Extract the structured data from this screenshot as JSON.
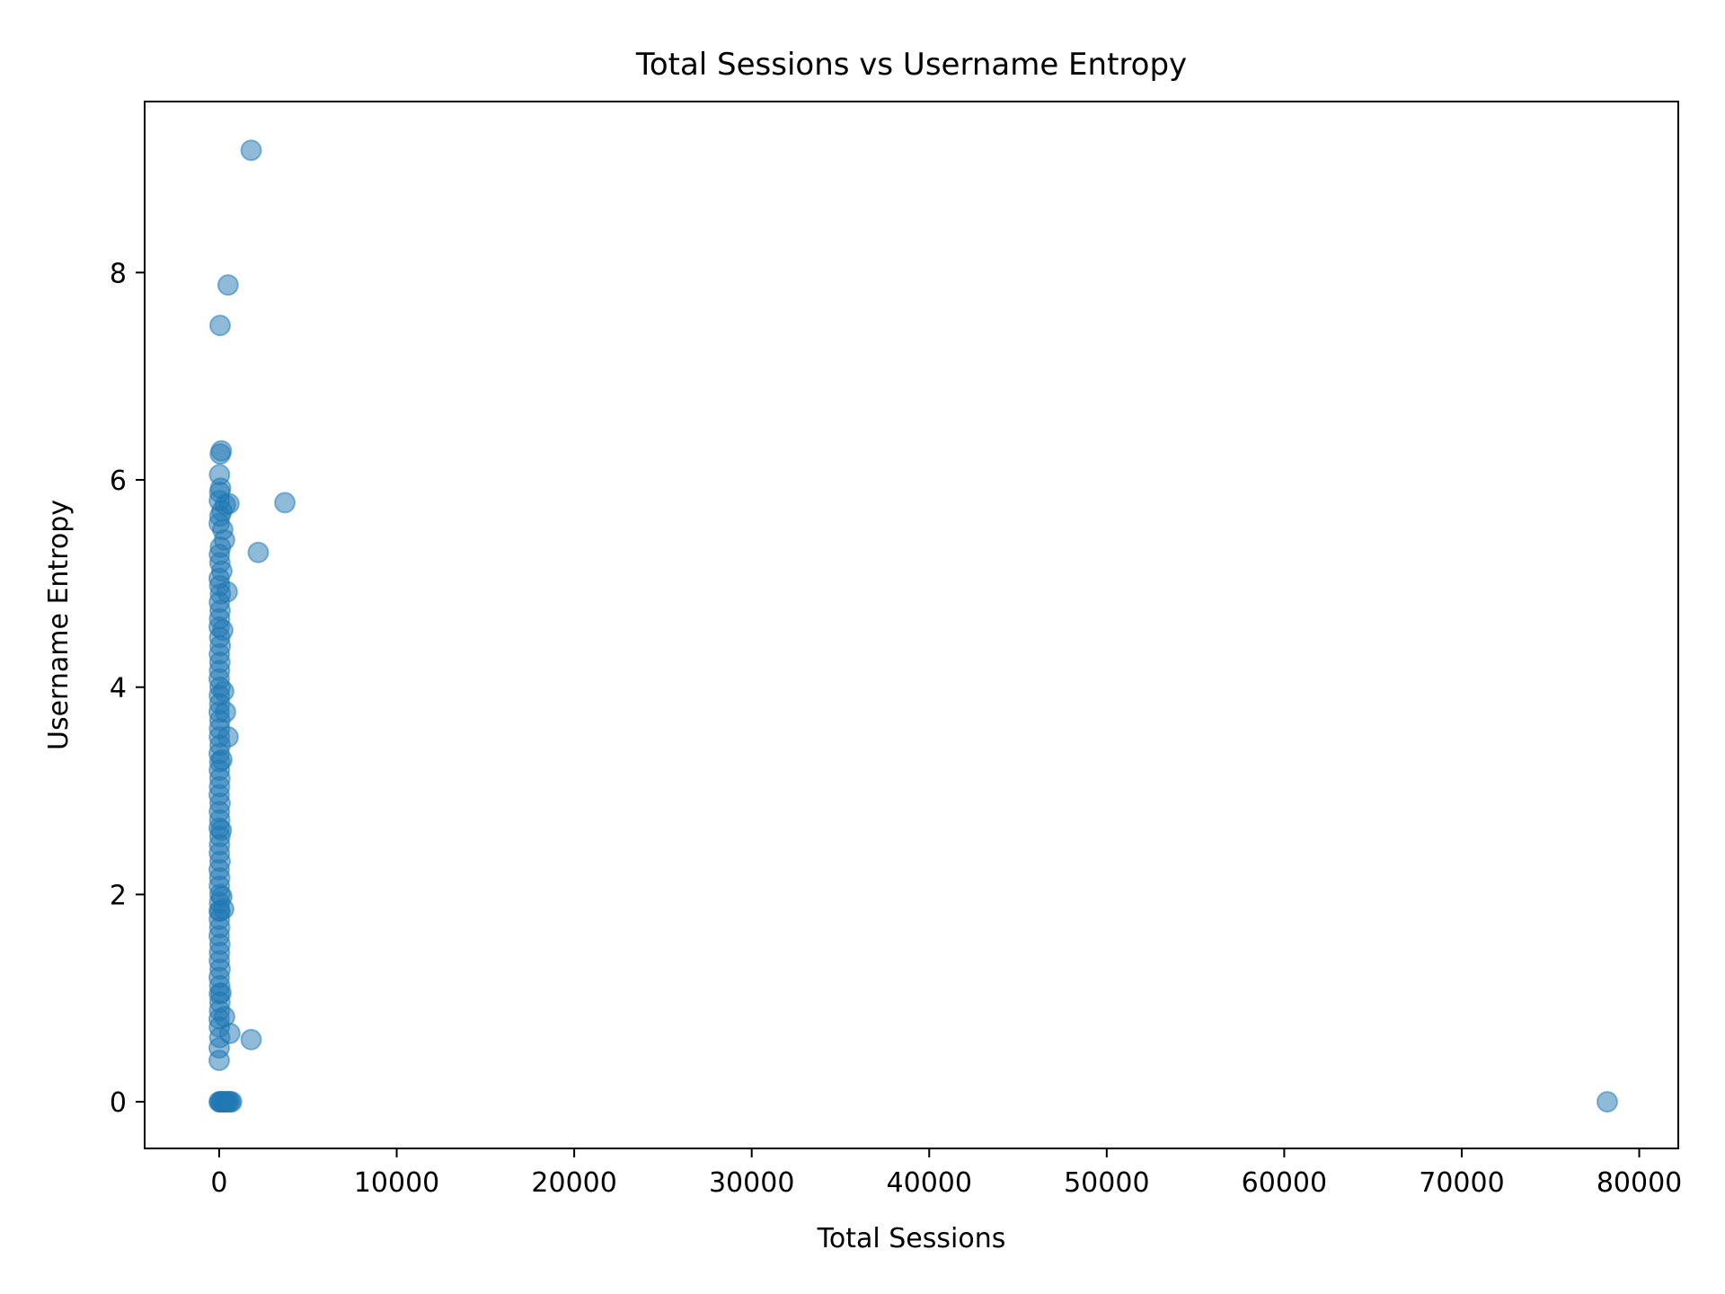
{
  "chart_data": {
    "type": "scatter",
    "title": "Total Sessions vs Username Entropy",
    "xlabel": "Total Sessions",
    "ylabel": "Username Entropy",
    "xlim": [
      -4200,
      82200
    ],
    "ylim": [
      -0.45,
      9.65
    ],
    "xticks": [
      0,
      10000,
      20000,
      30000,
      40000,
      50000,
      60000,
      70000,
      80000
    ],
    "xtick_labels": [
      "0",
      "10000",
      "20000",
      "30000",
      "40000",
      "50000",
      "60000",
      "70000",
      "80000"
    ],
    "yticks": [
      0,
      2,
      4,
      6,
      8
    ],
    "ytick_labels": [
      "0",
      "2",
      "4",
      "6",
      "8"
    ],
    "grid": false,
    "legend": "none",
    "marker_color": "#1f77b4",
    "marker_alpha": 0.5,
    "series": [
      {
        "points": [
          [
            1800,
            9.18
          ],
          [
            500,
            7.88
          ],
          [
            50,
            7.49
          ],
          [
            3700,
            5.78
          ],
          [
            2200,
            5.3
          ],
          [
            1800,
            0.6
          ],
          [
            78200,
            0.0
          ],
          [
            120,
            6.28
          ],
          [
            60,
            6.25
          ],
          [
            20,
            6.05
          ],
          [
            80,
            5.92
          ],
          [
            30,
            5.88
          ],
          [
            10,
            5.8
          ],
          [
            550,
            5.77
          ],
          [
            350,
            5.76
          ],
          [
            150,
            5.7
          ],
          [
            40,
            5.65
          ],
          [
            0,
            5.58
          ],
          [
            200,
            5.52
          ],
          [
            300,
            5.42
          ],
          [
            70,
            5.35
          ],
          [
            10,
            5.28
          ],
          [
            40,
            5.2
          ],
          [
            150,
            5.12
          ],
          [
            0,
            5.05
          ],
          [
            30,
            4.98
          ],
          [
            70,
            4.9
          ],
          [
            450,
            4.92
          ],
          [
            10,
            4.82
          ],
          [
            50,
            4.74
          ],
          [
            20,
            4.66
          ],
          [
            0,
            4.58
          ],
          [
            200,
            4.55
          ],
          [
            30,
            4.48
          ],
          [
            60,
            4.4
          ],
          [
            10,
            4.32
          ],
          [
            40,
            4.24
          ],
          [
            20,
            4.16
          ],
          [
            0,
            4.08
          ],
          [
            50,
            4.0
          ],
          [
            250,
            3.96
          ],
          [
            10,
            3.92
          ],
          [
            30,
            3.84
          ],
          [
            350,
            3.76
          ],
          [
            0,
            3.76
          ],
          [
            40,
            3.68
          ],
          [
            20,
            3.6
          ],
          [
            500,
            3.52
          ],
          [
            10,
            3.52
          ],
          [
            50,
            3.44
          ],
          [
            0,
            3.36
          ],
          [
            30,
            3.28
          ],
          [
            150,
            3.3
          ],
          [
            10,
            3.2
          ],
          [
            40,
            3.12
          ],
          [
            20,
            3.04
          ],
          [
            0,
            2.96
          ],
          [
            50,
            2.88
          ],
          [
            10,
            2.8
          ],
          [
            30,
            2.72
          ],
          [
            0,
            2.64
          ],
          [
            120,
            2.62
          ],
          [
            40,
            2.56
          ],
          [
            20,
            2.48
          ],
          [
            10,
            2.4
          ],
          [
            50,
            2.32
          ],
          [
            0,
            2.24
          ],
          [
            30,
            2.16
          ],
          [
            10,
            2.08
          ],
          [
            40,
            2.0
          ],
          [
            150,
            1.98
          ],
          [
            20,
            1.92
          ],
          [
            0,
            1.84
          ],
          [
            50,
            1.84
          ],
          [
            250,
            1.86
          ],
          [
            10,
            1.76
          ],
          [
            30,
            1.68
          ],
          [
            0,
            1.6
          ],
          [
            40,
            1.52
          ],
          [
            20,
            1.44
          ],
          [
            10,
            1.36
          ],
          [
            50,
            1.28
          ],
          [
            0,
            1.2
          ],
          [
            30,
            1.12
          ],
          [
            100,
            1.05
          ],
          [
            10,
            1.04
          ],
          [
            40,
            0.96
          ],
          [
            20,
            0.88
          ],
          [
            300,
            0.82
          ],
          [
            0,
            0.8
          ],
          [
            10,
            0.72
          ],
          [
            600,
            0.66
          ],
          [
            30,
            0.62
          ],
          [
            0,
            0.52
          ],
          [
            0,
            0.4
          ],
          [
            0,
            0.0
          ],
          [
            40,
            0.0
          ],
          [
            90,
            0.0
          ],
          [
            150,
            0.0
          ],
          [
            220,
            0.0
          ],
          [
            300,
            0.0
          ],
          [
            380,
            0.0
          ],
          [
            460,
            0.0
          ],
          [
            540,
            0.0
          ],
          [
            620,
            0.0
          ],
          [
            700,
            0.0
          ]
        ]
      }
    ]
  }
}
